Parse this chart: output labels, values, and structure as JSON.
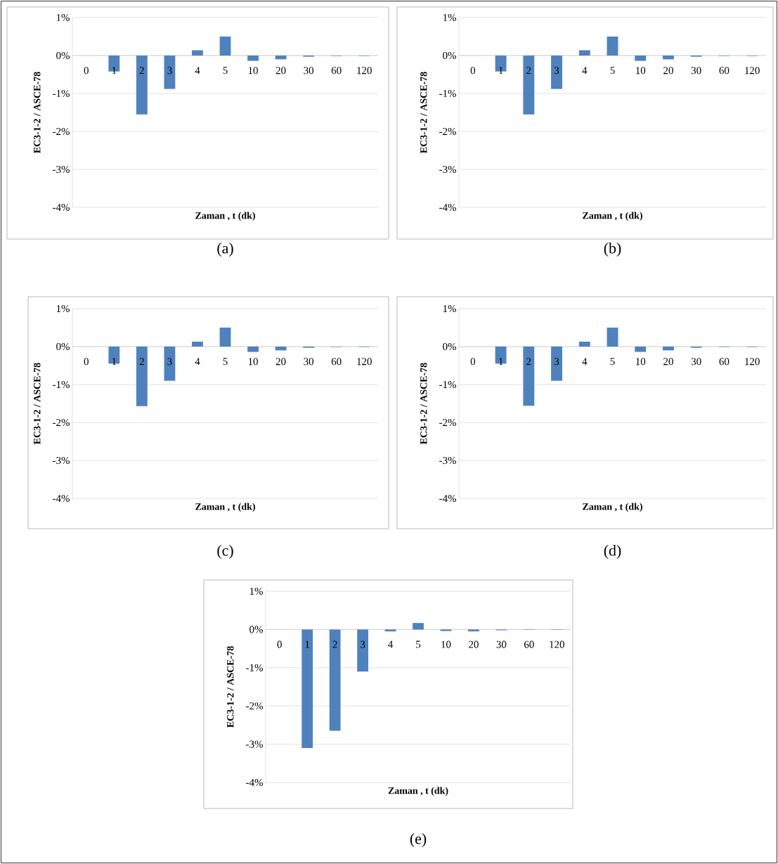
{
  "chart_data": [
    {
      "type": "bar",
      "categories": [
        "0",
        "1",
        "2",
        "3",
        "4",
        "5",
        "10",
        "20",
        "30",
        "60",
        "120"
      ],
      "values": [
        0,
        -0.42,
        -1.55,
        -0.88,
        0.14,
        0.5,
        -0.14,
        -0.1,
        -0.03,
        -0.01,
        -0.01
      ],
      "color": "#4f81bd",
      "ylim": [
        -4,
        1
      ],
      "yticks": [
        {
          "value": -4,
          "label": "-4%"
        },
        {
          "value": -3,
          "label": "-3%"
        },
        {
          "value": -2,
          "label": "-2%"
        },
        {
          "value": -1,
          "label": "-1%"
        },
        {
          "value": 0,
          "label": "0%"
        },
        {
          "value": 1,
          "label": "1%"
        }
      ],
      "xlabel": "Zaman , t  (dk)",
      "ylabel": "EC3-1-2  /  ASCE-78",
      "grid": true,
      "annotations": [
        "(a)"
      ]
    },
    {
      "type": "bar",
      "categories": [
        "0",
        "1",
        "2",
        "3",
        "4",
        "5",
        "10",
        "20",
        "30",
        "60",
        "120"
      ],
      "values": [
        0,
        -0.42,
        -1.55,
        -0.88,
        0.14,
        0.5,
        -0.14,
        -0.1,
        -0.03,
        -0.01,
        -0.01
      ],
      "color": "#4f81bd",
      "ylim": [
        -4,
        1
      ],
      "yticks": [
        {
          "value": -4,
          "label": "-4%"
        },
        {
          "value": -3,
          "label": "-3%"
        },
        {
          "value": -2,
          "label": "-2%"
        },
        {
          "value": -1,
          "label": "-1%"
        },
        {
          "value": 0,
          "label": "0%"
        },
        {
          "value": 1,
          "label": "1%"
        }
      ],
      "xlabel": "Zaman , t  (dk)",
      "ylabel": "EC3-1-2  /  ASCE-78",
      "grid": true,
      "annotations": [
        "(b)"
      ]
    },
    {
      "type": "bar",
      "categories": [
        "0",
        "1",
        "2",
        "3",
        "4",
        "5",
        "10",
        "20",
        "30",
        "60",
        "120"
      ],
      "values": [
        0,
        -0.45,
        -1.57,
        -0.9,
        0.13,
        0.5,
        -0.14,
        -0.1,
        -0.03,
        -0.01,
        -0.01
      ],
      "color": "#4f81bd",
      "ylim": [
        -4,
        1
      ],
      "yticks": [
        {
          "value": -4,
          "label": "-4%"
        },
        {
          "value": -3,
          "label": "-3%"
        },
        {
          "value": -2,
          "label": "-2%"
        },
        {
          "value": -1,
          "label": "-1%"
        },
        {
          "value": 0,
          "label": "0%"
        },
        {
          "value": 1,
          "label": "1%"
        }
      ],
      "xlabel": "Zaman , t  (dk)",
      "ylabel": "EC3-1-2  /  ASCE-78",
      "grid": true,
      "annotations": [
        "(c)"
      ]
    },
    {
      "type": "bar",
      "categories": [
        "0",
        "1",
        "2",
        "3",
        "4",
        "5",
        "10",
        "20",
        "30",
        "60",
        "120"
      ],
      "values": [
        0,
        -0.45,
        -1.56,
        -0.9,
        0.13,
        0.5,
        -0.14,
        -0.1,
        -0.03,
        -0.01,
        -0.01
      ],
      "color": "#4f81bd",
      "ylim": [
        -4,
        1
      ],
      "yticks": [
        {
          "value": -4,
          "label": "-4%"
        },
        {
          "value": -3,
          "label": "-3%"
        },
        {
          "value": -2,
          "label": "-2%"
        },
        {
          "value": -1,
          "label": "-1%"
        },
        {
          "value": 0,
          "label": "0%"
        },
        {
          "value": 1,
          "label": "1%"
        }
      ],
      "xlabel": "Zaman , t  (dk)",
      "ylabel": "EC3-1-2  /  ASCE-78",
      "grid": true,
      "annotations": [
        "(d)"
      ]
    },
    {
      "type": "bar",
      "categories": [
        "0",
        "1",
        "2",
        "3",
        "4",
        "5",
        "10",
        "20",
        "30",
        "60",
        "120"
      ],
      "values": [
        0,
        -3.1,
        -2.65,
        -1.1,
        -0.05,
        0.17,
        -0.04,
        -0.05,
        -0.02,
        -0.01,
        -0.01
      ],
      "color": "#4f81bd",
      "ylim": [
        -4,
        1
      ],
      "yticks": [
        {
          "value": -4,
          "label": "-4%"
        },
        {
          "value": -3,
          "label": "-3%"
        },
        {
          "value": -2,
          "label": "-2%"
        },
        {
          "value": -1,
          "label": "-1%"
        },
        {
          "value": 0,
          "label": "0%"
        },
        {
          "value": 1,
          "label": "1%"
        }
      ],
      "xlabel": "Zaman , t  (dk)",
      "ylabel": "EC3-1-2  /  ASCE-78",
      "grid": true,
      "annotations": [
        "(e)"
      ]
    }
  ]
}
